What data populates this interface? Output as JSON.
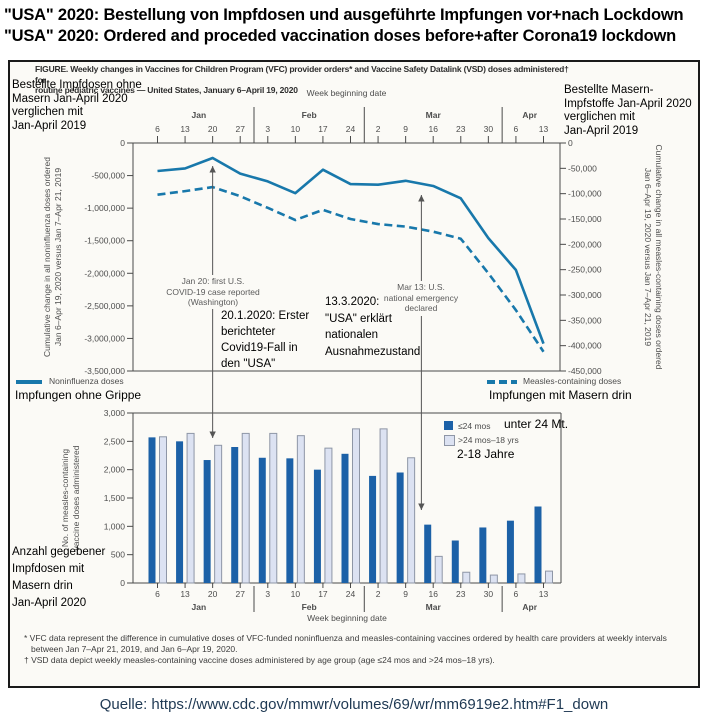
{
  "title": {
    "line1": "\"USA\" 2020: Bestellung von Impfdosen und ausgeführte Impfungen vor+nach Lockdown",
    "line2": "\"USA\" 2020: Ordered and proceded vaccination doses before+after Corona19 lockdown"
  },
  "figure_caption": "FIGURE. Weekly changes in Vaccines for Children Program (VFC) provider orders* and Vaccine Safety Datalink (VSD) doses administered† for\nroutine pediatric vaccines — United States, January 6–April 19, 2020",
  "annotations_de": {
    "top_left": "Bestellte Impfdosen ohne\nMasern Jan-April 2020\nverglichen mit\nJan-April 2019",
    "top_right": "Bestellte Masern-\nImpfstoffe Jan-April 2020\nverglichen mit\nJan-April 2019",
    "jan20": "20.1.2020: Erster\nberichteter\nCovid19-Fall in\nden \"USA\"",
    "mar13": "13.3.2020:\n\"USA\" erklärt\nnationalen\nAusnahmezustand",
    "legend_noninfluenza": "Impfungen ohne Grippe",
    "legend_measles": "Impfungen mit Masern drin",
    "bars_ylabel": "Anzahl gegebener\nImpfdosen mit\nMasern drin\nJan-April 2020",
    "bar_legend_dark": "unter 24 Mt.",
    "bar_legend_light": "2-18 Jahre"
  },
  "footnotes": {
    "vfc": "* VFC data represent the difference in cumulative doses of VFC-funded noninfluenza and measles-containing vaccines ordered by health care providers at weekly intervals between  Jan 7–Apr 21, 2019, and Jan 6–Apr 19, 2020.",
    "vsd": "† VSD data depict weekly measles-containing vaccine doses administered by age group (age ≤24 mos and >24 mos–18 yrs)."
  },
  "source": "Quelle: https://www.cdc.gov/mmwr/volumes/69/wr/mm6919e2.htm#F1_down",
  "colors": {
    "line_blue": "#1878ab",
    "bar_dark": "#1c61a7",
    "bar_light": "#dce2f2",
    "bar_light_border": "#8e96a6",
    "annotation_gray": "#5b5b5b",
    "axis_text": "#4d4d4d",
    "source_text": "#203a54"
  },
  "chart_data": [
    {
      "type": "line",
      "xlabel": "Week beginning date",
      "x_axis_position": "top",
      "categories": [
        "6",
        "13",
        "20",
        "27",
        "3",
        "10",
        "17",
        "24",
        "2",
        "9",
        "16",
        "23",
        "30",
        "6",
        "13"
      ],
      "month_groups": [
        {
          "label": "Jan",
          "weeks": 4
        },
        {
          "label": "Feb",
          "weeks": 4
        },
        {
          "label": "Mar",
          "weeks": 5
        },
        {
          "label": "Apr",
          "weeks": 2
        }
      ],
      "left_axis": {
        "label": "Cumulative change in all noninfluenza doses ordered\nJan 6–Apr 19, 2020 versus Jan 7–Apr 21, 2019",
        "tick_labels": [
          "0",
          "-500,000",
          "-1,000,000",
          "-1,500,000",
          "-2,000,000",
          "-2,500,000",
          "-3,000,000",
          "-3,500,000"
        ],
        "range": [
          0,
          -3500000
        ]
      },
      "right_axis": {
        "label": "Cumulative change in all measles-containing doses ordered\nJan 6–Apr 19, 2020 versus Jan 7–Apr 21, 2019",
        "tick_labels": [
          "0",
          "-50,000",
          "-100,000",
          "-150,000",
          "-200,000",
          "-250,000",
          "-300,000",
          "-350,000",
          "-400,000",
          "-450,000"
        ],
        "range": [
          0,
          -450000
        ]
      },
      "series": [
        {
          "name": "Noninfluenza doses",
          "axis": "left",
          "line_style": "solid",
          "values": [
            -430000,
            -390000,
            -230000,
            -470000,
            -590000,
            -770000,
            -410000,
            -630000,
            -640000,
            -580000,
            -660000,
            -850000,
            -1460000,
            -1950000,
            -3080000
          ]
        },
        {
          "name": "Measles-containing doses",
          "axis": "right",
          "line_style": "dashed",
          "values": [
            -102000,
            -95000,
            -87000,
            -105000,
            -128000,
            -152000,
            -132000,
            -150000,
            -160000,
            -165000,
            -175000,
            -189000,
            -257000,
            -330000,
            -412000
          ]
        }
      ],
      "annotations": [
        {
          "text": "Jan 20: first U.S.\nCOVID-19 case reported\n(Washington)",
          "week_position": 2
        },
        {
          "text": "Mar 13: U.S.\nnational emergency\ndeclared",
          "week_position": 9.571
        }
      ]
    },
    {
      "type": "bar",
      "xlabel": "Week beginning date",
      "ylabel": "No. of measles-containing\nvaccine doses administered",
      "categories": [
        "6",
        "13",
        "20",
        "27",
        "3",
        "10",
        "17",
        "24",
        "2",
        "9",
        "16",
        "23",
        "30",
        "6",
        "13"
      ],
      "month_groups": [
        {
          "label": "Jan",
          "weeks": 4
        },
        {
          "label": "Feb",
          "weeks": 4
        },
        {
          "label": "Mar",
          "weeks": 5
        },
        {
          "label": "Apr",
          "weeks": 2
        }
      ],
      "ylim": [
        0,
        3000
      ],
      "y_ticks": [
        "0",
        "500",
        "1,000",
        "1,500",
        "2,000",
        "2,500",
        "3,000"
      ],
      "series": [
        {
          "name": "≤24 mos",
          "color_key": "bar_dark",
          "values": [
            2570,
            2500,
            2170,
            2400,
            2210,
            2200,
            2000,
            2280,
            1890,
            1950,
            1030,
            750,
            980,
            1100,
            1350
          ]
        },
        {
          "name": ">24 mos–18 yrs",
          "color_key": "bar_light",
          "values": [
            2580,
            2640,
            2430,
            2640,
            2640,
            2600,
            2380,
            2720,
            2720,
            2210,
            470,
            190,
            140,
            160,
            210
          ]
        }
      ]
    }
  ]
}
